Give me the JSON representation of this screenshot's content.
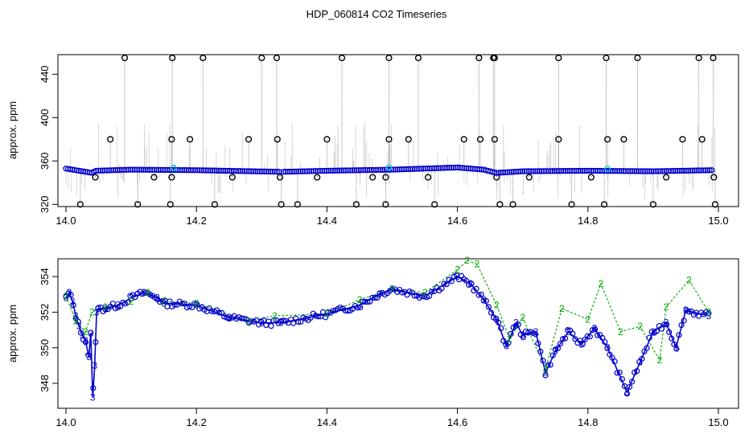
{
  "title": "HDP_060814  CO2 Timeseries",
  "colors": {
    "raw_line": "#9a9a9a",
    "flagged_marker": "#000000",
    "series1": "#0000cc",
    "series2": "#00aa00",
    "highlight": "#00d0d0"
  },
  "chart_data": [
    {
      "type": "scatter",
      "panel": "top",
      "title": "HDP_060814  CO2 Timeseries",
      "ylabel": "approx. ppm",
      "xlim": [
        14.0,
        15.0
      ],
      "ylim": [
        318,
        458
      ],
      "x_ticks": [
        14.0,
        14.2,
        14.4,
        14.6,
        14.8,
        15.0
      ],
      "x_tick_labels": [
        "14.0",
        "14.2",
        "14.4",
        "14.6",
        "14.8",
        "15.0"
      ],
      "y_ticks": [
        320,
        360,
        400,
        440
      ],
      "y_tick_labels": [
        "320",
        "360",
        "400",
        "440"
      ],
      "grid": false,
      "baseline": {
        "x": [
          14.0,
          14.04,
          14.045,
          14.1,
          14.2,
          14.33,
          14.4,
          14.5,
          14.6,
          14.64,
          14.66,
          14.7,
          14.8,
          14.9,
          14.99
        ],
        "y": [
          353,
          349,
          351,
          352,
          351.5,
          350,
          351,
          352,
          354,
          352,
          349,
          350.5,
          351,
          350.5,
          351.5
        ]
      },
      "outliers_high": [
        14.09,
        14.163,
        14.21,
        14.3,
        14.323,
        14.423,
        14.495,
        14.54,
        14.633,
        14.655,
        14.657,
        14.755,
        14.828,
        14.876,
        14.97,
        14.992
      ],
      "outliers_mid": [
        14.068,
        14.162,
        14.19,
        14.28,
        14.324,
        14.4,
        14.495,
        14.525,
        14.61,
        14.635,
        14.657,
        14.755,
        14.83,
        14.855,
        14.945,
        14.975
      ],
      "outliers_low": [
        14.022,
        14.11,
        14.16,
        14.228,
        14.33,
        14.355,
        14.445,
        14.49,
        14.565,
        14.665,
        14.685,
        14.775,
        14.825,
        14.9,
        14.995
      ],
      "outliers_near": [
        14.045,
        14.135,
        14.162,
        14.255,
        14.328,
        14.385,
        14.47,
        14.49,
        14.555,
        14.66,
        14.71,
        14.805,
        14.92,
        14.993
      ],
      "values_high": 455,
      "values_mid": 380,
      "values_low": 320,
      "values_near": 345
    },
    {
      "type": "line",
      "panel": "bottom",
      "ylabel": "approx. ppm",
      "xlim": [
        14.0,
        15.0
      ],
      "ylim": [
        346.6,
        355.0
      ],
      "x_ticks": [
        14.0,
        14.2,
        14.4,
        14.6,
        14.8,
        15.0
      ],
      "x_tick_labels": [
        "14.0",
        "14.2",
        "14.4",
        "14.6",
        "14.8",
        "15.0"
      ],
      "y_ticks": [
        348,
        350,
        352,
        354
      ],
      "y_tick_labels": [
        "348",
        "350",
        "352",
        "354"
      ],
      "grid": false,
      "series": [
        {
          "marker": "3",
          "x": [
            14.0,
            14.005,
            14.01,
            14.015,
            14.02,
            14.025,
            14.03,
            14.035,
            14.038,
            14.041,
            14.044,
            14.047,
            14.05,
            14.06,
            14.08,
            14.1,
            14.12,
            14.14,
            14.15,
            14.2,
            14.25,
            14.3,
            14.33,
            14.4,
            14.45,
            14.48,
            14.5,
            14.55,
            14.6,
            14.62,
            14.64,
            14.66,
            14.675,
            14.69,
            14.7,
            14.72,
            14.735,
            14.75,
            14.77,
            14.79,
            14.81,
            14.83,
            14.86,
            14.88,
            14.9,
            14.92,
            14.935,
            14.95,
            14.985
          ],
          "y": [
            352.8,
            353.1,
            352.6,
            351.8,
            351.2,
            350.7,
            350.4,
            349.5,
            350.8,
            347.2,
            349.0,
            352.0,
            352.2,
            352.2,
            352.4,
            352.8,
            353.1,
            352.8,
            352.5,
            352.4,
            351.7,
            351.4,
            351.4,
            351.9,
            352.4,
            353.0,
            353.3,
            352.9,
            354.0,
            353.6,
            352.7,
            351.6,
            350.1,
            351.4,
            350.7,
            350.9,
            348.6,
            349.8,
            350.9,
            350.2,
            351.1,
            350.0,
            347.5,
            349.2,
            350.9,
            351.4,
            350.0,
            352.1,
            351.8
          ]
        },
        {
          "marker": "2",
          "x": [
            14.0,
            14.015,
            14.03,
            14.04,
            14.06,
            14.1,
            14.125,
            14.15,
            14.2,
            14.28,
            14.32,
            14.4,
            14.45,
            14.5,
            14.55,
            14.6,
            14.615,
            14.63,
            14.66,
            14.68,
            14.7,
            14.735,
            14.76,
            14.8,
            14.82,
            14.85,
            14.88,
            14.91,
            14.92,
            14.955,
            14.985
          ],
          "y": [
            352.9,
            351.5,
            350.9,
            352.0,
            352.3,
            352.6,
            353.1,
            352.6,
            352.5,
            351.5,
            351.8,
            351.9,
            352.7,
            353.3,
            353.1,
            354.4,
            354.9,
            354.7,
            352.4,
            350.5,
            351.7,
            348.8,
            352.2,
            351.6,
            353.6,
            350.9,
            351.2,
            349.3,
            352.3,
            353.8,
            352.0
          ]
        }
      ]
    }
  ]
}
